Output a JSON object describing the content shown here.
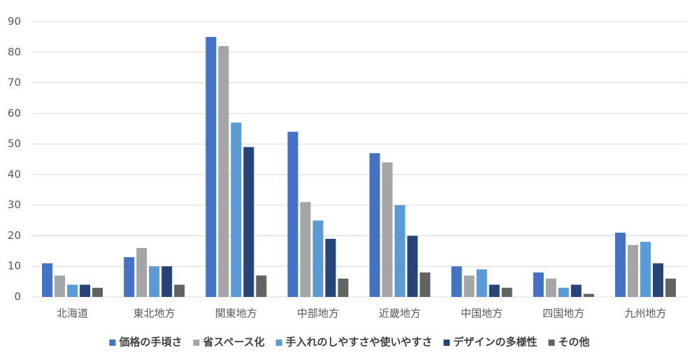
{
  "chart_data": {
    "type": "bar",
    "categories": [
      "北海道",
      "東北地方",
      "関東地方",
      "中部地方",
      "近畿地方",
      "中国地方",
      "四国地方",
      "九州地方"
    ],
    "series": [
      {
        "name": "価格の手頃さ",
        "color": "#4472c4",
        "values": [
          11,
          13,
          85,
          54,
          47,
          10,
          8,
          21
        ]
      },
      {
        "name": "省スペース化",
        "color": "#a5a5a5",
        "values": [
          7,
          16,
          82,
          31,
          44,
          7,
          6,
          17
        ]
      },
      {
        "name": "手入れのしやすさや使いやすさ",
        "color": "#5b9bd5",
        "values": [
          4,
          10,
          57,
          25,
          30,
          9,
          3,
          18
        ]
      },
      {
        "name": "デザインの多様性",
        "color": "#264478",
        "values": [
          4,
          10,
          49,
          19,
          20,
          4,
          4,
          11
        ]
      },
      {
        "name": "その他",
        "color": "#636363",
        "values": [
          3,
          4,
          7,
          6,
          8,
          3,
          1,
          6
        ]
      }
    ],
    "ylim": [
      0,
      90
    ],
    "yticks": [
      0,
      10,
      20,
      30,
      40,
      50,
      60,
      70,
      80,
      90
    ],
    "grid": true,
    "legend": "bottom"
  }
}
